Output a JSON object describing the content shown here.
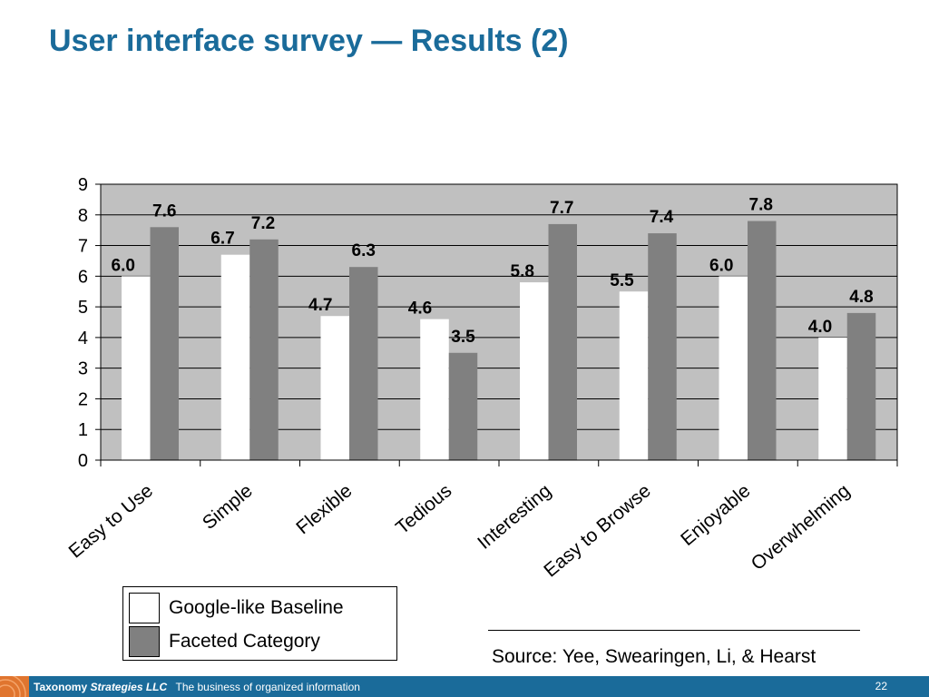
{
  "slide": {
    "title": "User interface survey — Results (2)",
    "source": "Source: Yee, Swearingen, Li, & Hearst",
    "footer": {
      "brand": "Taxonomy",
      "company": "Strategies LLC",
      "tagline": "The business of organized information",
      "page_number": "22"
    }
  },
  "chart_data": {
    "type": "bar",
    "title": "",
    "xlabel": "",
    "ylabel": "",
    "ylim": [
      0,
      9
    ],
    "yticks": [
      0,
      1,
      2,
      3,
      4,
      5,
      6,
      7,
      8,
      9
    ],
    "grid": true,
    "legend_position": "bottom-left",
    "plot_background": "#c0c0c0",
    "categories": [
      "Easy to Use",
      "Simple",
      "Flexible",
      "Tedious",
      "Interesting",
      "Easy to Browse",
      "Enjoyable",
      "Overwhelming"
    ],
    "series": [
      {
        "name": "Google-like Baseline",
        "color": "#ffffff",
        "values": [
          6.0,
          6.7,
          4.7,
          4.6,
          5.8,
          5.5,
          6.0,
          4.0
        ],
        "labels": [
          "6.0",
          "6.7",
          "4.7",
          "4.6",
          "5.8",
          "5.5",
          "6.0",
          "4.0"
        ]
      },
      {
        "name": "Faceted Category",
        "color": "#808080",
        "values": [
          7.6,
          7.2,
          6.3,
          3.5,
          7.7,
          7.4,
          7.8,
          4.8
        ],
        "labels": [
          "7.6",
          "7.2",
          "6.3",
          "3.5",
          "7.7",
          "7.4",
          "7.8",
          "4.8"
        ]
      }
    ]
  }
}
